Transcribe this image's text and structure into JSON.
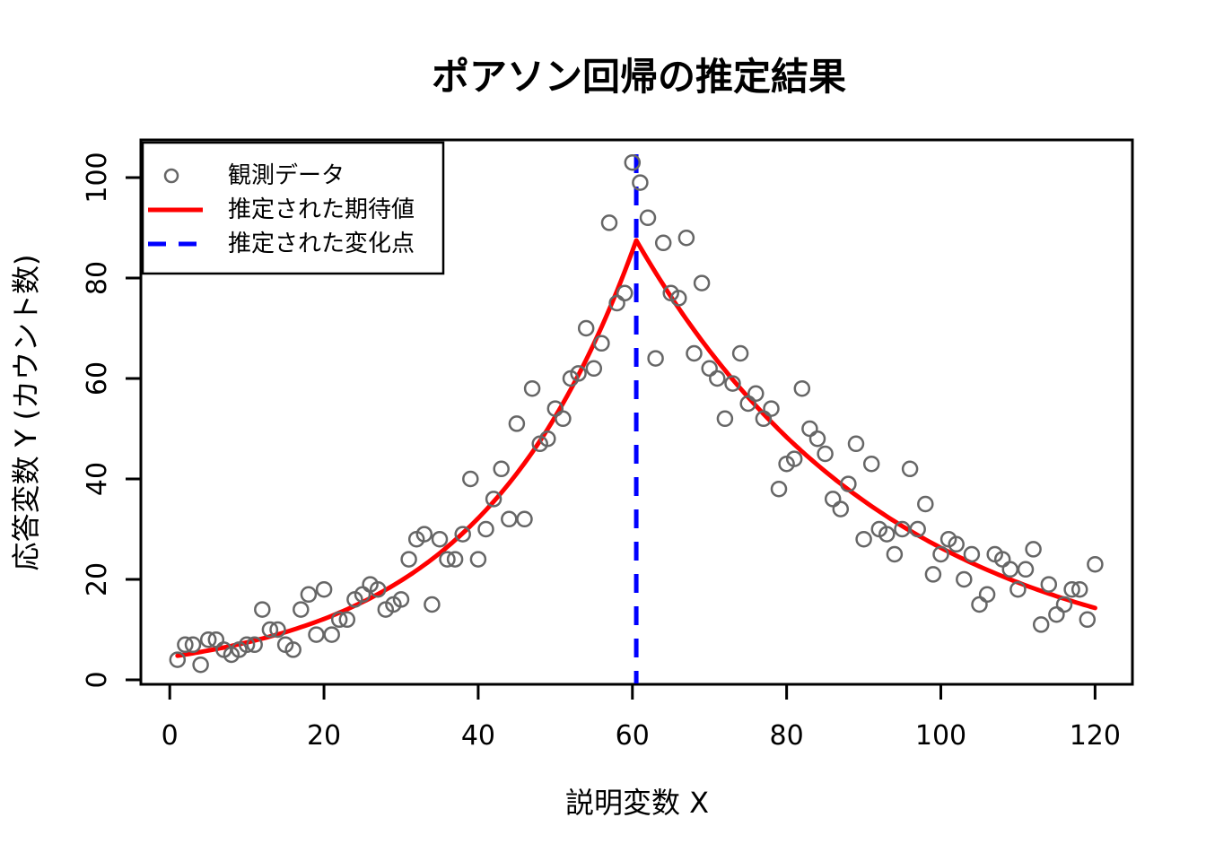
{
  "chart_data": {
    "type": "scatter",
    "title": "ポアソン回帰の推定結果",
    "xlabel": "説明変数 X",
    "ylabel": "応答変数 Y (カウント数)",
    "xlim": [
      -3.8,
      124.8
    ],
    "ylim": [
      -1,
      107.5
    ],
    "x_ticks": [
      0,
      20,
      40,
      60,
      80,
      100,
      120
    ],
    "y_ticks": [
      0,
      20,
      40,
      60,
      80,
      100
    ],
    "grid": "off",
    "legend_position": "topleft",
    "legend": [
      {
        "label": "観測データ",
        "marker": "open-circle",
        "color": "#666666"
      },
      {
        "label": "推定された期待値",
        "marker": "solid-line",
        "color": "#ff0000"
      },
      {
        "label": "推定された変化点",
        "marker": "dashed-line",
        "color": "#0000ff"
      }
    ],
    "points_series_name": "観測データ",
    "points": [
      [
        1,
        4
      ],
      [
        2,
        7
      ],
      [
        3,
        7
      ],
      [
        4,
        3
      ],
      [
        5,
        8
      ],
      [
        6,
        8
      ],
      [
        7,
        6
      ],
      [
        8,
        5
      ],
      [
        9,
        6
      ],
      [
        10,
        7
      ],
      [
        11,
        7
      ],
      [
        12,
        14
      ],
      [
        13,
        10
      ],
      [
        14,
        10
      ],
      [
        15,
        7
      ],
      [
        16,
        6
      ],
      [
        17,
        14
      ],
      [
        18,
        17
      ],
      [
        19,
        9
      ],
      [
        20,
        18
      ],
      [
        21,
        9
      ],
      [
        22,
        12
      ],
      [
        23,
        12
      ],
      [
        24,
        16
      ],
      [
        25,
        17
      ],
      [
        26,
        19
      ],
      [
        27,
        18
      ],
      [
        28,
        14
      ],
      [
        29,
        15
      ],
      [
        30,
        16
      ],
      [
        31,
        24
      ],
      [
        32,
        28
      ],
      [
        33,
        29
      ],
      [
        34,
        15
      ],
      [
        35,
        28
      ],
      [
        36,
        24
      ],
      [
        37,
        24
      ],
      [
        38,
        29
      ],
      [
        39,
        40
      ],
      [
        40,
        24
      ],
      [
        41,
        30
      ],
      [
        42,
        36
      ],
      [
        43,
        42
      ],
      [
        44,
        32
      ],
      [
        45,
        51
      ],
      [
        46,
        32
      ],
      [
        47,
        58
      ],
      [
        48,
        47
      ],
      [
        49,
        48
      ],
      [
        50,
        54
      ],
      [
        51,
        52
      ],
      [
        52,
        60
      ],
      [
        53,
        61
      ],
      [
        54,
        70
      ],
      [
        55,
        62
      ],
      [
        56,
        67
      ],
      [
        57,
        91
      ],
      [
        58,
        75
      ],
      [
        59,
        77
      ],
      [
        60,
        103
      ],
      [
        61,
        99
      ],
      [
        62,
        92
      ],
      [
        63,
        64
      ],
      [
        64,
        87
      ],
      [
        65,
        77
      ],
      [
        66,
        76
      ],
      [
        67,
        88
      ],
      [
        68,
        65
      ],
      [
        69,
        79
      ],
      [
        70,
        62
      ],
      [
        71,
        60
      ],
      [
        72,
        52
      ],
      [
        73,
        59
      ],
      [
        74,
        65
      ],
      [
        75,
        55
      ],
      [
        76,
        57
      ],
      [
        77,
        52
      ],
      [
        78,
        54
      ],
      [
        79,
        38
      ],
      [
        80,
        43
      ],
      [
        81,
        44
      ],
      [
        82,
        58
      ],
      [
        83,
        50
      ],
      [
        84,
        48
      ],
      [
        85,
        45
      ],
      [
        86,
        36
      ],
      [
        87,
        34
      ],
      [
        88,
        39
      ],
      [
        89,
        47
      ],
      [
        90,
        28
      ],
      [
        91,
        43
      ],
      [
        92,
        30
      ],
      [
        93,
        29
      ],
      [
        94,
        25
      ],
      [
        95,
        30
      ],
      [
        96,
        42
      ],
      [
        97,
        30
      ],
      [
        98,
        35
      ],
      [
        99,
        21
      ],
      [
        100,
        25
      ],
      [
        101,
        28
      ],
      [
        102,
        27
      ],
      [
        103,
        20
      ],
      [
        104,
        25
      ],
      [
        105,
        15
      ],
      [
        106,
        17
      ],
      [
        107,
        25
      ],
      [
        108,
        24
      ],
      [
        109,
        22
      ],
      [
        110,
        18
      ],
      [
        111,
        22
      ],
      [
        112,
        26
      ],
      [
        113,
        11
      ],
      [
        114,
        19
      ],
      [
        115,
        13
      ],
      [
        116,
        15
      ],
      [
        117,
        18
      ],
      [
        118,
        18
      ],
      [
        119,
        12
      ],
      [
        120,
        23
      ]
    ],
    "fitted_curve": {
      "name": "推定された期待値",
      "shape": "piecewise-exponential",
      "x_start": 1,
      "y_start": 4.8,
      "change_point_x": 60.5,
      "peak_y": 87.5,
      "x_end": 120,
      "y_end": 14.3
    },
    "change_point": {
      "name": "推定された変化点",
      "x": 60.5
    }
  },
  "colors": {
    "points": "#666666",
    "fitted_curve": "#ff0000",
    "change_point": "#0000ff",
    "axis": "#000000",
    "background": "#ffffff"
  }
}
